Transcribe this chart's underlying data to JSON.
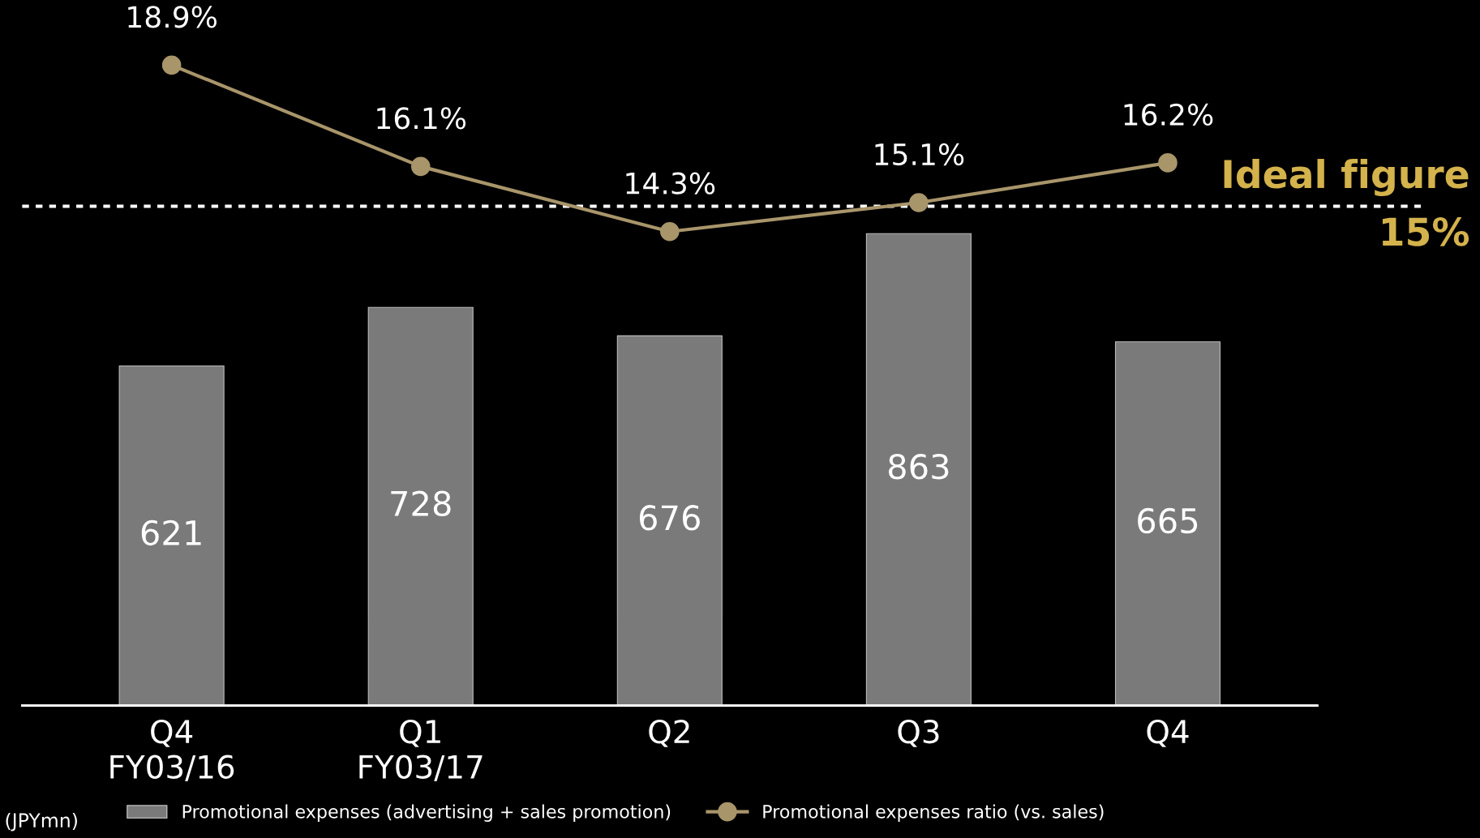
{
  "chart_data": {
    "type": "bar",
    "categories": [
      "Q4\nFY03/16",
      "Q1\nFY03/17",
      "Q2",
      "Q3",
      "Q4"
    ],
    "series": [
      {
        "name": "Promotional expenses (advertising + sales promotion)",
        "color": "#7a7a7a",
        "values": [
          621,
          728,
          676,
          863,
          665
        ]
      },
      {
        "name": "Promotional expenses ratio (vs. sales)",
        "type": "line",
        "axis": "y2",
        "color": "#a8956a",
        "marker": "circle",
        "values": [
          18.9,
          16.1,
          14.3,
          15.1,
          16.2
        ],
        "value_labels": [
          "18.9%",
          "16.1%",
          "14.3%",
          "15.1%",
          "16.2%"
        ]
      }
    ],
    "data_labels": true,
    "ylim": [
      0,
      1290
    ],
    "y2lim": [
      1.2,
      20.7
    ],
    "tick_labels": "x",
    "ref_lines": [
      {
        "axis": "y2",
        "value": 15,
        "label": "Ideal figure\n15%",
        "color": "#ffffff",
        "line_style": "dotted"
      }
    ],
    "legend": "bottom",
    "grid": false,
    "annotations": [
      "(JPYmn)"
    ]
  }
}
